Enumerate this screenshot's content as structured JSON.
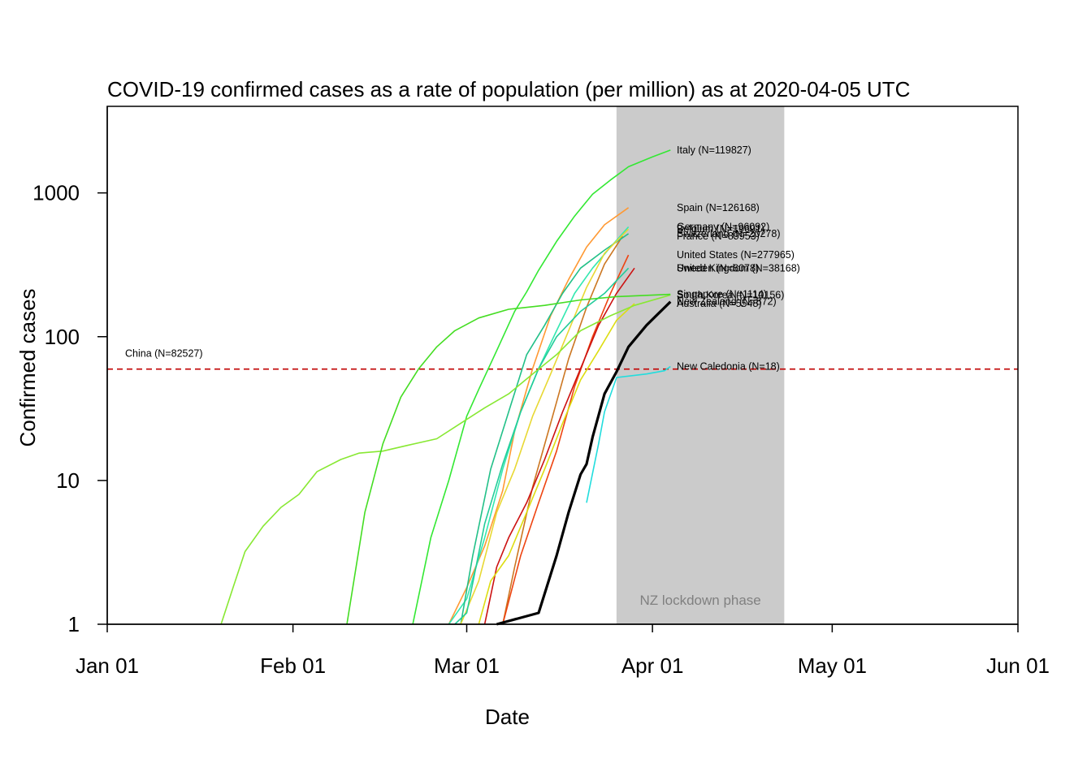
{
  "chart_data": {
    "type": "line",
    "title": "COVID-19 confirmed cases as a rate of population (per million) as at 2020-04-05 UTC",
    "xlabel": "Date",
    "ylabel": "Confirmed cases",
    "x_axis": {
      "type": "date",
      "range": [
        "2020-01-01",
        "2020-06-01"
      ],
      "ticks": [
        {
          "date": "2020-01-01",
          "label": "Jan 01"
        },
        {
          "date": "2020-02-01",
          "label": "Feb 01"
        },
        {
          "date": "2020-03-01",
          "label": "Mar 01"
        },
        {
          "date": "2020-04-01",
          "label": "Apr 01"
        },
        {
          "date": "2020-05-01",
          "label": "May 01"
        },
        {
          "date": "2020-06-01",
          "label": "Jun 01"
        }
      ]
    },
    "y_axis": {
      "scale": "log",
      "range": [
        1,
        4000
      ],
      "ticks": [
        {
          "value": 1,
          "label": "1"
        },
        {
          "value": 10,
          "label": "10"
        },
        {
          "value": 100,
          "label": "100"
        },
        {
          "value": 1000,
          "label": "1000"
        }
      ]
    },
    "grid": false,
    "shaded_region": {
      "start": "2020-03-26",
      "end": "2020-04-23",
      "label": "NZ lockdown phase",
      "color": "#cbcbcb"
    },
    "reference_line": {
      "value": 59.5,
      "color": "#c00000",
      "style": "dashed",
      "label": "China (N=82527)"
    },
    "series": [
      {
        "name": "Italy (N=119827)",
        "color": "#33e833",
        "width": 1.6,
        "points": [
          [
            "2020-02-21",
            1
          ],
          [
            "2020-02-24",
            4
          ],
          [
            "2020-02-27",
            10
          ],
          [
            "2020-03-01",
            28
          ],
          [
            "2020-03-03",
            43
          ],
          [
            "2020-03-06",
            80
          ],
          [
            "2020-03-09",
            150
          ],
          [
            "2020-03-11",
            205
          ],
          [
            "2020-03-13",
            290
          ],
          [
            "2020-03-16",
            460
          ],
          [
            "2020-03-19",
            690
          ],
          [
            "2020-03-22",
            980
          ],
          [
            "2020-03-25",
            1230
          ],
          [
            "2020-03-28",
            1520
          ],
          [
            "2020-04-01",
            1780
          ],
          [
            "2020-04-04",
            1985
          ]
        ]
      },
      {
        "name": "Spain (N=126168)",
        "color": "#ff9933",
        "width": 1.6,
        "points": [
          [
            "2020-02-27",
            1
          ],
          [
            "2020-03-01",
            1.8
          ],
          [
            "2020-03-04",
            3.5
          ],
          [
            "2020-03-07",
            8.5
          ],
          [
            "2020-03-09",
            22
          ],
          [
            "2020-03-12",
            60
          ],
          [
            "2020-03-15",
            140
          ],
          [
            "2020-03-18",
            250
          ],
          [
            "2020-03-21",
            420
          ],
          [
            "2020-03-24",
            600
          ],
          [
            "2020-03-28",
            790
          ],
          [
            "2020-04-01],[2020-04-04",
            900
          ]
        ]
      },
      {
        "name": "France (N=89953)",
        "color": "#cc7722",
        "width": 1.6,
        "points": [
          [
            "2020-03-07",
            1
          ],
          [
            "2020-03-09",
            2.5
          ],
          [
            "2020-03-12",
            9
          ],
          [
            "2020-03-15",
            25
          ],
          [
            "2020-03-18",
            70
          ],
          [
            "2020-03-21",
            160
          ],
          [
            "2020-03-24",
            320
          ],
          [
            "2020-03-27",
            500
          ],
          [
            "2020-04-01],[2020-04-04",
            920
          ]
        ]
      },
      {
        "name": "Germany (N=96092)",
        "color": "#33e8b0",
        "width": 1.6,
        "points": [
          [
            "2020-02-27",
            1
          ],
          [
            "2020-03-01",
            1.5
          ],
          [
            "2020-03-04",
            4
          ],
          [
            "2020-03-07",
            12
          ],
          [
            "2020-03-10",
            30
          ],
          [
            "2020-03-13",
            60
          ],
          [
            "2020-03-16",
            110
          ],
          [
            "2020-03-19",
            200
          ],
          [
            "2020-03-22",
            300
          ],
          [
            "2020-03-25",
            420
          ],
          [
            "2020-03-28",
            580
          ],
          [
            "2020-04-01],[2020-04-04",
            940
          ]
        ]
      },
      {
        "name": "Switzerland (N=20278)",
        "color": "#22c088",
        "width": 1.6,
        "points": [
          [
            "2020-02-29",
            1
          ],
          [
            "2020-03-02",
            3
          ],
          [
            "2020-03-05",
            12
          ],
          [
            "2020-03-08",
            30
          ],
          [
            "2020-03-11",
            75
          ],
          [
            "2020-03-14",
            120
          ],
          [
            "2020-03-17",
            200
          ],
          [
            "2020-03-20",
            300
          ],
          [
            "2020-03-24",
            400
          ],
          [
            "2020-03-28",
            520
          ],
          [
            "2020-04-01],[2020-04-04",
            900
          ]
        ]
      },
      {
        "name": "Belgium (N=19691)",
        "color": "#e8d833",
        "width": 1.6,
        "points": [
          [
            "2020-02-29",
            1
          ],
          [
            "2020-03-03",
            2
          ],
          [
            "2020-03-06",
            6
          ],
          [
            "2020-03-09",
            12
          ],
          [
            "2020-03-12",
            28
          ],
          [
            "2020-03-15",
            55
          ],
          [
            "2020-03-18",
            110
          ],
          [
            "2020-03-21",
            220
          ],
          [
            "2020-03-24",
            380
          ],
          [
            "2020-03-28",
            560
          ],
          [
            "2020-04-01],[2020-04-04",
            870
          ]
        ]
      },
      {
        "name": "United States (N=277965)",
        "color": "#ee4411",
        "width": 1.6,
        "points": [
          [
            "2020-03-07",
            1
          ],
          [
            "2020-03-10",
            3
          ],
          [
            "2020-03-13",
            7
          ],
          [
            "2020-03-16",
            16
          ],
          [
            "2020-03-19",
            45
          ],
          [
            "2020-03-22",
            100
          ],
          [
            "2020-03-25",
            200
          ],
          [
            "2020-03-28",
            370
          ],
          [
            "2020-04-01],[2020-04-04",
            840
          ]
        ]
      },
      {
        "name": "Sweden (N=6078)",
        "color": "#22cc99",
        "width": 1.6,
        "points": [
          [
            "2020-02-28",
            1
          ],
          [
            "2020-03-01",
            1.2
          ],
          [
            "2020-03-04",
            5
          ],
          [
            "2020-03-07",
            13
          ],
          [
            "2020-03-10",
            30
          ],
          [
            "2020-03-13",
            60
          ],
          [
            "2020-03-16",
            100
          ],
          [
            "2020-03-20",
            150
          ],
          [
            "2020-03-24",
            200
          ],
          [
            "2020-03-28",
            300
          ],
          [
            "2020-04-01],[2020-04-04",
            590
          ]
        ]
      },
      {
        "name": "United Kingdom (N=38168)",
        "color": "#cc1111",
        "width": 1.6,
        "points": [
          [
            "2020-03-04",
            1
          ],
          [
            "2020-03-06",
            2.5
          ],
          [
            "2020-03-08",
            4
          ],
          [
            "2020-03-11",
            7
          ],
          [
            "2020-03-14",
            14
          ],
          [
            "2020-03-17",
            30
          ],
          [
            "2020-03-20",
            60
          ],
          [
            "2020-03-23",
            120
          ],
          [
            "2020-03-26",
            200
          ],
          [
            "2020-03-29",
            300
          ],
          [
            "2020-04-01],[2020-04-04",
            560
          ]
        ]
      },
      {
        "name": "Australia (N=5548)",
        "color": "#dddd11",
        "width": 1.6,
        "points": [
          [
            "2020-03-03",
            1
          ],
          [
            "2020-03-05",
            2
          ],
          [
            "2020-03-08",
            3
          ],
          [
            "2020-03-11",
            6
          ],
          [
            "2020-03-14",
            12
          ],
          [
            "2020-03-17",
            25
          ],
          [
            "2020-03-20",
            50
          ],
          [
            "2020-03-23",
            80
          ],
          [
            "2020-03-26",
            130
          ],
          [
            "2020-03-29",
            170
          ],
          [
            "2020-04-01],[2020-04-04",
            220
          ]
        ]
      },
      {
        "name": "South Korea (N=10156)",
        "color": "#88e833",
        "width": 1.6,
        "points": [
          [
            "2020-01-20",
            1
          ],
          [
            "2020-01-22",
            1.8
          ],
          [
            "2020-01-24",
            3.2
          ],
          [
            "2020-01-27",
            4.8
          ],
          [
            "2020-01-30",
            6.5
          ],
          [
            "2020-02-02",
            8
          ],
          [
            "2020-02-05",
            11.5
          ],
          [
            "2020-02-09",
            14
          ],
          [
            "2020-02-12",
            15.5
          ],
          [
            "2020-02-16",
            16
          ],
          [
            "2020-02-20",
            17.5
          ],
          [
            "2020-02-25",
            19.5
          ],
          [
            "2020-02-29",
            25
          ],
          [
            "2020-03-04",
            32
          ],
          [
            "2020-03-08",
            40
          ],
          [
            "2020-03-12",
            55
          ],
          [
            "2020-03-16",
            75
          ],
          [
            "2020-03-20",
            110
          ],
          [
            "2020-03-25",
            140
          ],
          [
            "2020-03-29",
            165
          ],
          [
            "2020-04-04",
            195
          ]
        ]
      },
      {
        "name": "Singapore (N=1114)",
        "color": "#44dd22",
        "width": 1.6,
        "points": [
          [
            "2020-02-10",
            1
          ],
          [
            "2020-02-13",
            6
          ],
          [
            "2020-02-16",
            18
          ],
          [
            "2020-02-19",
            38
          ],
          [
            "2020-02-22",
            60
          ],
          [
            "2020-02-25",
            85
          ],
          [
            "2020-02-28",
            110
          ],
          [
            "2020-03-03",
            135
          ],
          [
            "2020-03-08",
            155
          ],
          [
            "2020-03-14",
            165
          ],
          [
            "2020-03-20",
            180
          ],
          [
            "2020-03-26",
            190
          ],
          [
            "2020-04-04",
            197
          ]
        ]
      },
      {
        "name": "New Zealand (N=872)",
        "color": "#000000",
        "width": 3.2,
        "points": [
          [
            "2020-03-06",
            1
          ],
          [
            "2020-03-13",
            1.2
          ],
          [
            "2020-03-16",
            3
          ],
          [
            "2020-03-18",
            6
          ],
          [
            "2020-03-20",
            11
          ],
          [
            "2020-03-21",
            13
          ],
          [
            "2020-03-22",
            20
          ],
          [
            "2020-03-24",
            40
          ],
          [
            "2020-03-26",
            57
          ],
          [
            "2020-03-28",
            85
          ],
          [
            "2020-03-31",
            120
          ],
          [
            "2020-04-02",
            145
          ],
          [
            "2020-04-04",
            175
          ]
        ]
      },
      {
        "name": "New Caledonia (N=18)",
        "color": "#22dddd",
        "width": 1.6,
        "points": [
          [
            "2020-03-21",
            7
          ],
          [
            "2020-03-23",
            18
          ],
          [
            "2020-03-24",
            30
          ],
          [
            "2020-03-26",
            52
          ],
          [
            "2020-03-31",
            55
          ],
          [
            "2020-04-03",
            58
          ],
          [
            "2020-04-04",
            62
          ]
        ]
      }
    ]
  }
}
